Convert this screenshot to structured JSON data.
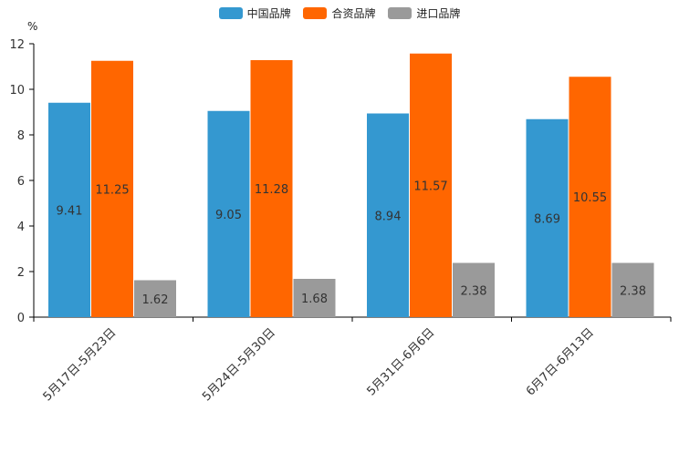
{
  "chart_data": {
    "type": "bar",
    "title": "",
    "unit_label": "%",
    "xlabel": "",
    "ylabel": "%",
    "ylim": [
      0,
      12
    ],
    "yticks": [
      0,
      2,
      4,
      6,
      8,
      10,
      12
    ],
    "categories": [
      "5月17日-5月23日",
      "5月24日-5月30日",
      "5月31日-6月6日",
      "6月7日-6月13日"
    ],
    "series": [
      {
        "name": "中国品牌",
        "color": "#3498d0",
        "values": [
          9.41,
          9.05,
          8.94,
          8.69
        ]
      },
      {
        "name": "合资品牌",
        "color": "#ff6600",
        "values": [
          11.25,
          11.28,
          11.57,
          10.55
        ]
      },
      {
        "name": "进口品牌",
        "color": "#9a9a9a",
        "values": [
          1.62,
          1.68,
          2.38,
          2.38
        ]
      }
    ],
    "legend_position": "top-center",
    "grid": false
  }
}
